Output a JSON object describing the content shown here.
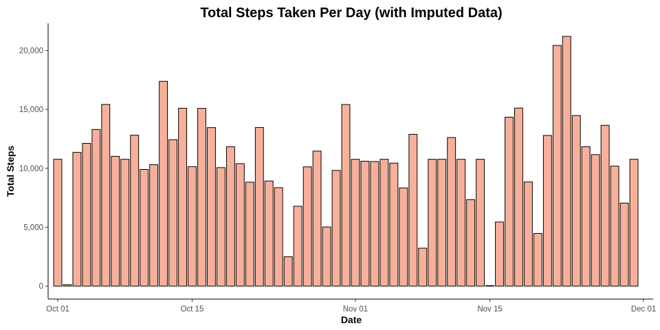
{
  "chart_data": {
    "type": "bar",
    "title": "Total Steps Taken Per Day (with Imputed Data)",
    "xlabel": "Date",
    "ylabel": "Total Steps",
    "xlim": [
      "2012-09-30",
      "2012-12-02"
    ],
    "ylim": [
      -1100,
      22300
    ],
    "x_ticks": [
      {
        "date": "2012-10-01",
        "label": "Oct 01"
      },
      {
        "date": "2012-10-15",
        "label": "Oct 15"
      },
      {
        "date": "2012-11-01",
        "label": "Nov 01"
      },
      {
        "date": "2012-11-15",
        "label": "Nov 15"
      },
      {
        "date": "2012-12-01",
        "label": "Dec 01"
      }
    ],
    "y_ticks": [
      {
        "value": 0,
        "label": "0"
      },
      {
        "value": 5000,
        "label": "5,000"
      },
      {
        "value": 10000,
        "label": "10,000"
      },
      {
        "value": 15000,
        "label": "15,000"
      },
      {
        "value": 20000,
        "label": "20,000"
      }
    ],
    "bar_fill": "#f8b09a",
    "bar_stroke": "#000000",
    "grid": false,
    "dates": [
      "2012-10-01",
      "2012-10-02",
      "2012-10-03",
      "2012-10-04",
      "2012-10-05",
      "2012-10-06",
      "2012-10-07",
      "2012-10-08",
      "2012-10-09",
      "2012-10-10",
      "2012-10-11",
      "2012-10-12",
      "2012-10-13",
      "2012-10-14",
      "2012-10-15",
      "2012-10-16",
      "2012-10-17",
      "2012-10-18",
      "2012-10-19",
      "2012-10-20",
      "2012-10-21",
      "2012-10-22",
      "2012-10-23",
      "2012-10-24",
      "2012-10-25",
      "2012-10-26",
      "2012-10-27",
      "2012-10-28",
      "2012-10-29",
      "2012-10-30",
      "2012-10-31",
      "2012-11-01",
      "2012-11-02",
      "2012-11-03",
      "2012-11-04",
      "2012-11-05",
      "2012-11-06",
      "2012-11-07",
      "2012-11-08",
      "2012-11-09",
      "2012-11-10",
      "2012-11-11",
      "2012-11-12",
      "2012-11-13",
      "2012-11-14",
      "2012-11-15",
      "2012-11-16",
      "2012-11-17",
      "2012-11-18",
      "2012-11-19",
      "2012-11-20",
      "2012-11-21",
      "2012-11-22",
      "2012-11-23",
      "2012-11-24",
      "2012-11-25",
      "2012-11-26",
      "2012-11-27",
      "2012-11-28",
      "2012-11-29",
      "2012-11-30"
    ],
    "values": [
      10766,
      126,
      11352,
      12116,
      13294,
      15420,
      11015,
      10766,
      12811,
      9900,
      10304,
      17382,
      12426,
      15098,
      10139,
      15084,
      13452,
      10056,
      11829,
      10395,
      8821,
      13460,
      8918,
      8355,
      2492,
      6778,
      10119,
      11458,
      5018,
      9819,
      15414,
      10766,
      10600,
      10571,
      10766,
      10439,
      8334,
      12883,
      3219,
      10766,
      10766,
      12608,
      10765,
      7336,
      10766,
      41,
      5441,
      14339,
      15110,
      8841,
      4472,
      12787,
      20427,
      21194,
      14478,
      11834,
      11162,
      13646,
      10183,
      7047,
      10766
    ]
  }
}
